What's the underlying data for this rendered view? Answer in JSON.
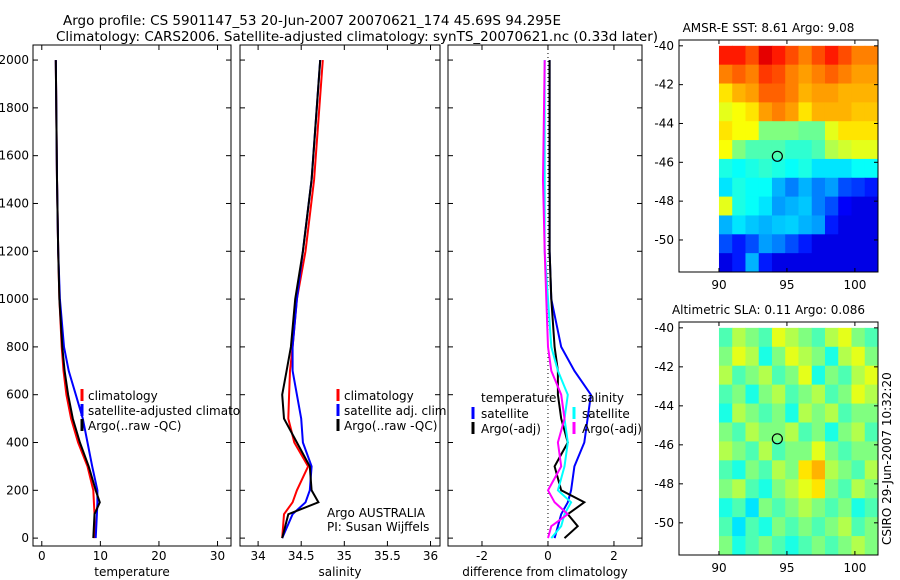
{
  "title_line1": "Argo profile: CS 5901147_53 20-Jun-2007 20070621_174 45.69S 94.295E",
  "title_line2": "Climatology: CARS2006. Satellite-adjusted climatology: synTS_20070621.nc (0.33d later)",
  "side_label": "CSIRO 29-Jun-2007 10:32:20",
  "colors": {
    "clim": "#ff0000",
    "sat": "#0000ff",
    "argo": "#000000",
    "ssat": "#00ffff",
    "sargo": "#ff00ff"
  },
  "chart_data": [
    {
      "type": "line",
      "id": "temp",
      "xlabel": "temperature",
      "xlim": [
        -1.5,
        32.3
      ],
      "ylim": [
        2063,
        -33
      ],
      "xticks": [
        0,
        10,
        20,
        30
      ],
      "yticks": [
        0,
        200,
        400,
        600,
        800,
        1000,
        1200,
        1400,
        1600,
        1800,
        2000
      ],
      "depth": [
        0,
        100,
        150,
        200,
        300,
        400,
        500,
        600,
        700,
        800,
        1000,
        1200,
        1500,
        2000
      ],
      "series": [
        {
          "name": "climatology",
          "color": "clim",
          "values": [
            9.0,
            9.0,
            8.9,
            8.8,
            7.8,
            6.2,
            5.0,
            4.2,
            3.7,
            3.4,
            3.0,
            2.8,
            2.6,
            2.4
          ]
        },
        {
          "name": "satellite-adjusted climatology",
          "color": "sat",
          "values": [
            9.2,
            9.4,
            9.5,
            9.5,
            8.6,
            7.8,
            7.0,
            5.8,
            4.6,
            3.8,
            3.1,
            2.8,
            2.6,
            2.4
          ]
        },
        {
          "name": "Argo(..raw -QC)",
          "color": "argo",
          "values": [
            8.8,
            9.0,
            9.9,
            9.2,
            8.0,
            6.5,
            5.3,
            4.5,
            3.9,
            3.5,
            3.0,
            2.8,
            2.6,
            2.4
          ]
        }
      ],
      "legend": {
        "placement": "lower-center",
        "items": [
          "climatology",
          "satellite-adjusted climatology",
          "Argo(..raw -QC)"
        ]
      }
    },
    {
      "type": "line",
      "id": "sal",
      "xlabel": "salinity",
      "xlim": [
        33.79,
        36.11
      ],
      "ylim": [
        2063,
        -33
      ],
      "xticks": [
        34,
        34.5,
        35,
        35.5,
        36
      ],
      "depth": [
        0,
        100,
        150,
        200,
        300,
        400,
        500,
        600,
        700,
        800,
        1000,
        1200,
        1500,
        2000
      ],
      "series": [
        {
          "name": "climatology",
          "color": "clim",
          "values": [
            34.28,
            34.3,
            34.4,
            34.45,
            34.58,
            34.42,
            34.35,
            34.36,
            34.37,
            34.4,
            34.45,
            34.55,
            34.65,
            34.75
          ]
        },
        {
          "name": "satellite adj. clim.",
          "color": "sat",
          "values": [
            34.28,
            34.4,
            34.55,
            34.6,
            34.62,
            34.52,
            34.5,
            34.45,
            34.4,
            34.4,
            34.45,
            34.52,
            34.62,
            34.72
          ]
        },
        {
          "name": "Argo(..raw -QC)",
          "color": "argo",
          "values": [
            34.28,
            34.35,
            34.7,
            34.62,
            34.6,
            34.45,
            34.3,
            34.28,
            34.33,
            34.38,
            34.43,
            34.52,
            34.62,
            34.72
          ]
        }
      ],
      "legend": {
        "placement": "lower-center",
        "items": [
          "climatology",
          "satellite adj. clim.",
          "Argo(..raw -QC)"
        ]
      },
      "annotation": [
        "Argo AUSTRALIA",
        "PI: Susan Wijffels"
      ]
    },
    {
      "type": "line",
      "id": "diff",
      "xlabel": "difference from climatology",
      "xlim": [
        -3.03,
        2.85
      ],
      "ylim": [
        2063,
        -33
      ],
      "xticks": [
        -2,
        0,
        2
      ],
      "depth": [
        0,
        50,
        100,
        150,
        200,
        300,
        400,
        500,
        600,
        700,
        800,
        1000,
        1200,
        1500,
        2000
      ],
      "series": [
        {
          "name": "temperature satellite",
          "color": "sat",
          "values": [
            0.2,
            0.3,
            0.4,
            0.6,
            0.7,
            0.8,
            1.1,
            1.2,
            1.3,
            0.8,
            0.4,
            0.1,
            0.05,
            0.05,
            0.05
          ]
        },
        {
          "name": "temperature Argo(-adj)",
          "color": "argo",
          "values": [
            0.5,
            0.9,
            0.6,
            1.1,
            0.4,
            0.2,
            0.6,
            0.4,
            0.3,
            0.3,
            0.2,
            0.1,
            0.05,
            0.05,
            0.05
          ]
        },
        {
          "name": "salinity satellite",
          "color": "ssat",
          "values": [
            0.1,
            0.4,
            0.5,
            0.7,
            0.3,
            0.5,
            0.6,
            0.5,
            0.6,
            0.3,
            0.1,
            0.0,
            -0.1,
            -0.1,
            -0.1
          ]
        },
        {
          "name": "salinity Argo(-adj)",
          "color": "sargo",
          "values": [
            0.0,
            0.1,
            0.6,
            0.2,
            0.0,
            0.4,
            0.3,
            0.5,
            0.4,
            0.1,
            0.0,
            -0.05,
            -0.1,
            -0.15,
            -0.1
          ]
        }
      ],
      "legend": {
        "placement": "lower-center",
        "groups": [
          "temperature",
          "salinity"
        ],
        "items": [
          "satellite",
          "Argo(-adj)",
          "satellite",
          "Argo(-adj)"
        ]
      }
    },
    {
      "type": "heatmap",
      "id": "sst",
      "title": "AMSR-E SST: 8.61  Argo: 9.08",
      "xlim": [
        87.06,
        101.7
      ],
      "ylim": [
        -39.7,
        -51.65
      ],
      "lon_range": [
        90,
        101.7
      ],
      "lat_range": [
        -40,
        -51.65
      ],
      "xticks": [
        90,
        95,
        100
      ],
      "yticks": [
        -40,
        -42,
        -44,
        -46,
        -48,
        -50
      ],
      "marker": [
        94.295,
        -45.69
      ],
      "grid": [
        [
          0.85,
          0.85,
          0.8,
          0.9,
          0.85,
          0.8,
          0.75,
          0.8,
          0.85,
          0.8,
          0.75,
          0.75
        ],
        [
          0.75,
          0.78,
          0.75,
          0.82,
          0.8,
          0.75,
          0.72,
          0.75,
          0.78,
          0.75,
          0.72,
          0.72
        ],
        [
          0.65,
          0.7,
          0.72,
          0.78,
          0.78,
          0.75,
          0.7,
          0.72,
          0.72,
          0.7,
          0.7,
          0.7
        ],
        [
          0.6,
          0.62,
          0.65,
          0.72,
          0.75,
          0.72,
          0.65,
          0.7,
          0.7,
          0.7,
          0.68,
          0.68
        ],
        [
          0.65,
          0.62,
          0.62,
          0.5,
          0.5,
          0.5,
          0.48,
          0.48,
          0.6,
          0.65,
          0.65,
          0.65
        ],
        [
          0.62,
          0.5,
          0.45,
          0.45,
          0.45,
          0.42,
          0.42,
          0.45,
          0.55,
          0.58,
          0.6,
          0.6
        ],
        [
          0.4,
          0.38,
          0.4,
          0.42,
          0.4,
          0.38,
          0.4,
          0.35,
          0.35,
          0.35,
          0.38,
          0.38
        ],
        [
          0.35,
          0.4,
          0.38,
          0.38,
          0.3,
          0.25,
          0.3,
          0.25,
          0.28,
          0.2,
          0.18,
          0.15
        ],
        [
          0.6,
          0.4,
          0.38,
          0.35,
          0.28,
          0.3,
          0.32,
          0.25,
          0.2,
          0.12,
          0.1,
          0.1
        ],
        [
          0.3,
          0.35,
          0.32,
          0.3,
          0.32,
          0.33,
          0.3,
          0.28,
          0.15,
          0.1,
          0.1,
          0.1
        ],
        [
          0.2,
          0.15,
          0.2,
          0.28,
          0.25,
          0.2,
          0.15,
          0.1,
          0.1,
          0.1,
          0.1,
          0.1
        ],
        [
          0.1,
          0.15,
          0.3,
          0.15,
          0.1,
          0.1,
          0.1,
          0.1,
          0.1,
          0.1,
          0.1,
          0.1
        ]
      ]
    },
    {
      "type": "heatmap",
      "id": "sla",
      "title": "Altimetric SLA: 0.11  Argo: 0.086",
      "xlim": [
        87.06,
        101.7
      ],
      "ylim": [
        -39.7,
        -51.65
      ],
      "lon_range": [
        90,
        101.7
      ],
      "lat_range": [
        -40,
        -51.65
      ],
      "xticks": [
        90,
        95,
        100
      ],
      "yticks": [
        -40,
        -42,
        -44,
        -46,
        -48,
        -50
      ],
      "marker": [
        94.295,
        -45.69
      ],
      "grid": [
        [
          0.45,
          0.55,
          0.5,
          0.45,
          0.6,
          0.55,
          0.5,
          0.45,
          0.55,
          0.6,
          0.5,
          0.45
        ],
        [
          0.5,
          0.6,
          0.55,
          0.4,
          0.5,
          0.6,
          0.55,
          0.5,
          0.4,
          0.55,
          0.6,
          0.5
        ],
        [
          0.55,
          0.45,
          0.5,
          0.55,
          0.45,
          0.5,
          0.6,
          0.4,
          0.5,
          0.45,
          0.55,
          0.6
        ],
        [
          0.45,
          0.5,
          0.4,
          0.5,
          0.55,
          0.45,
          0.5,
          0.55,
          0.45,
          0.5,
          0.6,
          0.55
        ],
        [
          0.4,
          0.55,
          0.5,
          0.45,
          0.5,
          0.4,
          0.55,
          0.5,
          0.55,
          0.45,
          0.5,
          0.5
        ],
        [
          0.5,
          0.45,
          0.55,
          0.5,
          0.5,
          0.55,
          0.45,
          0.5,
          0.4,
          0.5,
          0.55,
          0.45
        ],
        [
          0.55,
          0.5,
          0.45,
          0.55,
          0.45,
          0.5,
          0.5,
          0.6,
          0.5,
          0.45,
          0.5,
          0.5
        ],
        [
          0.45,
          0.4,
          0.5,
          0.45,
          0.55,
          0.5,
          0.65,
          0.7,
          0.55,
          0.5,
          0.45,
          0.55
        ],
        [
          0.5,
          0.55,
          0.45,
          0.4,
          0.5,
          0.55,
          0.6,
          0.65,
          0.5,
          0.45,
          0.55,
          0.5
        ],
        [
          0.4,
          0.45,
          0.35,
          0.5,
          0.45,
          0.5,
          0.55,
          0.5,
          0.45,
          0.5,
          0.4,
          0.45
        ],
        [
          0.45,
          0.35,
          0.45,
          0.4,
          0.5,
          0.45,
          0.5,
          0.45,
          0.5,
          0.55,
          0.45,
          0.5
        ],
        [
          0.5,
          0.4,
          0.45,
          0.5,
          0.45,
          0.4,
          0.45,
          0.5,
          0.45,
          0.5,
          0.55,
          0.5
        ]
      ]
    }
  ]
}
